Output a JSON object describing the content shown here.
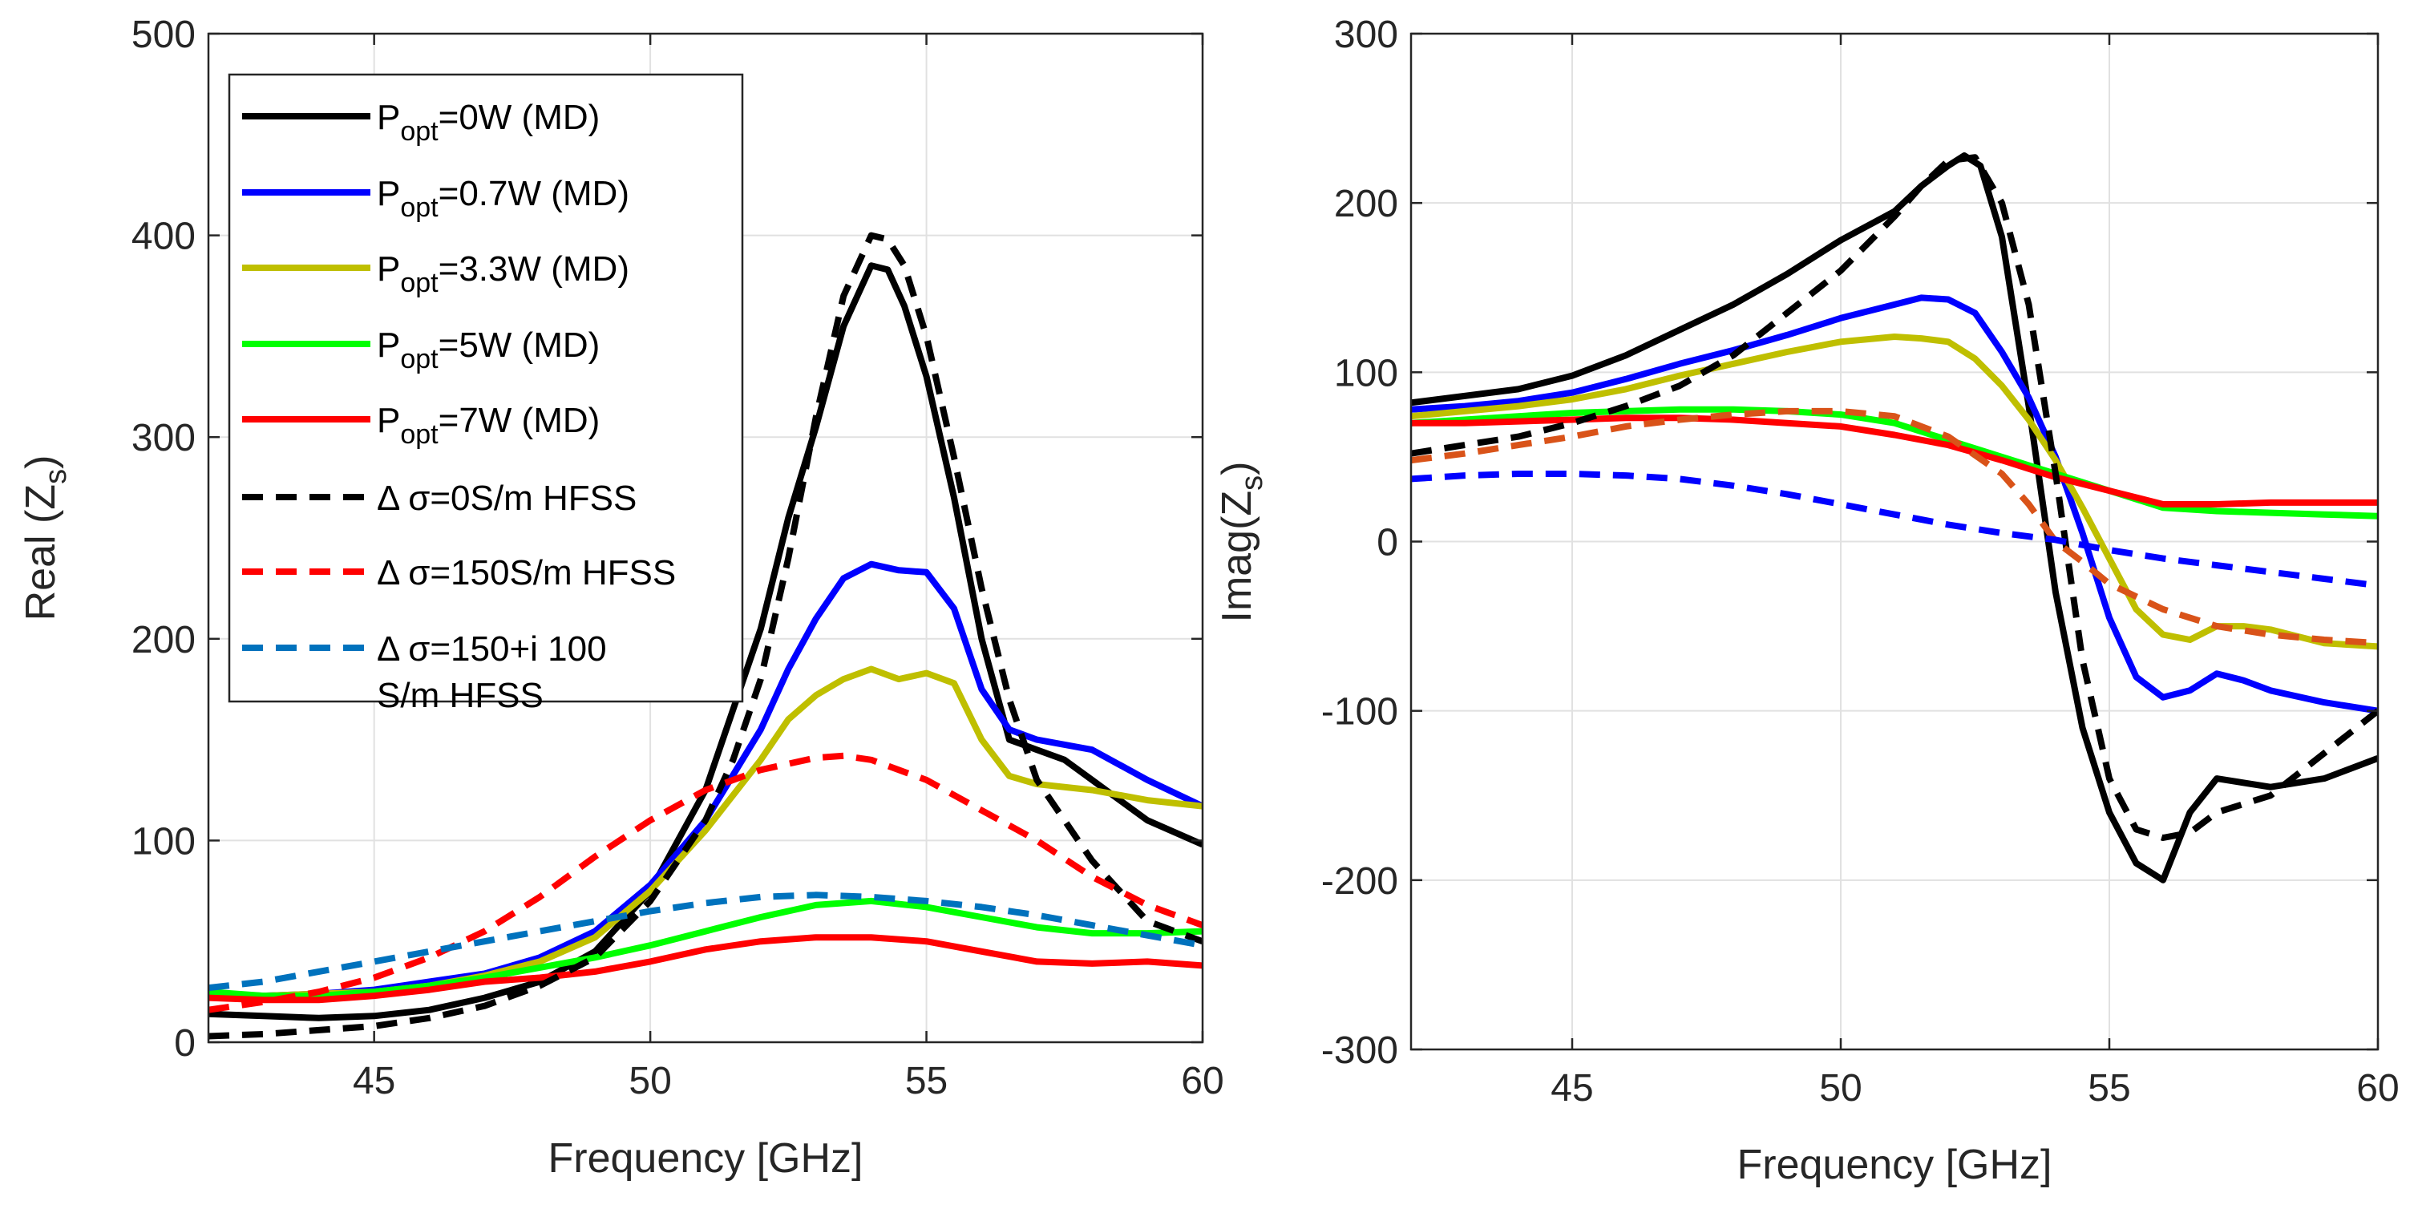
{
  "chart_data": [
    {
      "type": "line",
      "xlabel": "Frequency [GHz]",
      "ylabel": "Real (Z",
      "ylabel_sub": "s",
      "ylabel_close": ")",
      "xlim": [
        42,
        60
      ],
      "ylim": [
        0,
        500
      ],
      "xticks": [
        45,
        50,
        55,
        60
      ],
      "yticks": [
        0,
        100,
        200,
        300,
        400,
        500
      ],
      "grid": true,
      "legend_position": "top-left",
      "legend": [
        {
          "pre": "P",
          "sub": "opt",
          "post": "=0W (MD)",
          "style": "solid",
          "color": "#000000"
        },
        {
          "pre": "P",
          "sub": "opt",
          "post": "=0.7W (MD)",
          "style": "solid",
          "color": "#0000ff"
        },
        {
          "pre": "P",
          "sub": "opt",
          "post": "=3.3W (MD)",
          "style": "solid",
          "color": "#bfbf00"
        },
        {
          "pre": "P",
          "sub": "opt",
          "post": "=5W (MD)",
          "style": "solid",
          "color": "#00ff00"
        },
        {
          "pre": "P",
          "sub": "opt",
          "post": "=7W (MD)",
          "style": "solid",
          "color": "#ff0000"
        },
        {
          "line1": "Δ σ=0S/m HFSS",
          "style": "dashed",
          "color": "#000000"
        },
        {
          "line1": "Δ σ=150S/m HFSS",
          "style": "dashed",
          "color": "#ff0000"
        },
        {
          "line1": "Δ σ=150+i 100",
          "line2": "S/m HFSS",
          "style": "dashed",
          "color": "#0072bd"
        }
      ],
      "series": [
        {
          "name": "Popt=0W (MD)",
          "color": "#000000",
          "style": "solid",
          "x": [
            42,
            43,
            44,
            45,
            46,
            47,
            48,
            49,
            50,
            51,
            52,
            52.5,
            53,
            53.5,
            54,
            54.3,
            54.6,
            55,
            55.5,
            56,
            56.5,
            57,
            57.5,
            58,
            59,
            60
          ],
          "y": [
            14,
            13,
            12,
            13,
            16,
            22,
            30,
            45,
            75,
            125,
            205,
            260,
            305,
            355,
            385,
            383,
            365,
            330,
            270,
            200,
            150,
            145,
            140,
            130,
            110,
            98
          ]
        },
        {
          "name": "Popt=0.7W (MD)",
          "color": "#0000ff",
          "style": "solid",
          "x": [
            42,
            43,
            44,
            45,
            46,
            47,
            48,
            49,
            50,
            51,
            52,
            52.5,
            53,
            53.5,
            54,
            54.5,
            55,
            55.5,
            56,
            56.5,
            57,
            58,
            59,
            60
          ],
          "y": [
            24,
            23,
            24,
            26,
            30,
            34,
            42,
            55,
            78,
            110,
            155,
            185,
            210,
            230,
            237,
            234,
            233,
            215,
            175,
            155,
            150,
            145,
            130,
            117
          ]
        },
        {
          "name": "Popt=3.3W (MD)",
          "color": "#bfbf00",
          "style": "solid",
          "x": [
            42,
            43,
            44,
            45,
            46,
            47,
            48,
            49,
            50,
            51,
            52,
            52.5,
            53,
            53.5,
            54,
            54.5,
            55,
            55.5,
            56,
            56.5,
            57,
            58,
            59,
            60
          ],
          "y": [
            24,
            23,
            24,
            25,
            28,
            33,
            40,
            52,
            75,
            105,
            140,
            160,
            172,
            180,
            185,
            180,
            183,
            178,
            150,
            132,
            128,
            125,
            120,
            117
          ]
        },
        {
          "name": "Popt=5W (MD)",
          "color": "#00ff00",
          "style": "solid",
          "x": [
            42,
            43,
            44,
            45,
            46,
            47,
            48,
            49,
            50,
            51,
            52,
            53,
            54,
            55,
            56,
            57,
            58,
            59,
            60
          ],
          "y": [
            25,
            23,
            23,
            25,
            28,
            32,
            37,
            42,
            48,
            55,
            62,
            68,
            70,
            67,
            62,
            57,
            54,
            54,
            55
          ]
        },
        {
          "name": "Popt=7W (MD)",
          "color": "#ff0000",
          "style": "solid",
          "x": [
            42,
            43,
            44,
            45,
            46,
            47,
            48,
            49,
            50,
            51,
            52,
            53,
            54,
            55,
            56,
            57,
            58,
            59,
            60
          ],
          "y": [
            22,
            21,
            21,
            23,
            26,
            30,
            32,
            35,
            40,
            46,
            50,
            52,
            52,
            50,
            45,
            40,
            39,
            40,
            38
          ]
        },
        {
          "name": "Δ σ=0S/m HFSS",
          "color": "#000000",
          "style": "dashed",
          "x": [
            42,
            43,
            44,
            45,
            46,
            47,
            48,
            49,
            50,
            51,
            51.5,
            52,
            52.5,
            53,
            53.5,
            54,
            54.3,
            54.6,
            55,
            55.5,
            56,
            56.5,
            57,
            58,
            59,
            60
          ],
          "y": [
            3,
            4,
            6,
            8,
            12,
            18,
            28,
            42,
            70,
            110,
            140,
            180,
            240,
            310,
            370,
            400,
            398,
            385,
            350,
            290,
            225,
            170,
            130,
            90,
            60,
            50
          ]
        },
        {
          "name": "Δ σ=150S/m HFSS",
          "color": "#ff0000",
          "style": "dashed",
          "x": [
            42,
            43,
            44,
            45,
            46,
            47,
            48,
            49,
            50,
            51,
            52,
            53,
            53.5,
            54,
            55,
            56,
            57,
            58,
            59,
            60
          ],
          "y": [
            16,
            20,
            25,
            32,
            42,
            55,
            72,
            92,
            110,
            125,
            135,
            141,
            142,
            140,
            130,
            115,
            100,
            82,
            68,
            58
          ]
        },
        {
          "name": "Δ σ=150+i 100 S/m HFSS",
          "color": "#0072bd",
          "style": "dashed",
          "x": [
            42,
            43,
            44,
            45,
            46,
            47,
            48,
            49,
            50,
            51,
            52,
            53,
            54,
            55,
            56,
            57,
            58,
            59,
            60
          ],
          "y": [
            27,
            30,
            35,
            40,
            45,
            50,
            55,
            60,
            65,
            69,
            72,
            73,
            72,
            70,
            67,
            63,
            58,
            53,
            48
          ]
        }
      ]
    },
    {
      "type": "line",
      "xlabel": "Frequency [GHz]",
      "ylabel": "Imag(Z",
      "ylabel_sub": "s",
      "ylabel_close": ")",
      "xlim": [
        42,
        60
      ],
      "ylim": [
        -300,
        300
      ],
      "xticks": [
        45,
        50,
        55,
        60
      ],
      "yticks": [
        -300,
        -200,
        -100,
        0,
        100,
        200,
        300
      ],
      "grid": true,
      "series": [
        {
          "name": "Popt=0W (MD)",
          "color": "#000000",
          "style": "solid",
          "x": [
            42,
            43,
            44,
            45,
            46,
            47,
            48,
            49,
            50,
            51,
            51.5,
            52,
            52.3,
            52.6,
            53,
            53.5,
            54,
            54.5,
            55,
            55.5,
            56,
            56.5,
            57,
            58,
            59,
            60
          ],
          "y": [
            82,
            86,
            90,
            98,
            110,
            125,
            140,
            158,
            178,
            195,
            210,
            222,
            228,
            222,
            180,
            80,
            -30,
            -110,
            -160,
            -190,
            -200,
            -160,
            -140,
            -145,
            -140,
            -128
          ]
        },
        {
          "name": "Popt=0.7W (MD)",
          "color": "#0000ff",
          "style": "solid",
          "x": [
            42,
            43,
            44,
            45,
            46,
            47,
            48,
            49,
            50,
            51,
            51.5,
            52,
            52.5,
            53,
            53.5,
            54,
            54.5,
            55,
            55.5,
            56,
            56.5,
            57,
            57.5,
            58,
            59,
            60
          ],
          "y": [
            78,
            80,
            83,
            88,
            96,
            105,
            113,
            122,
            132,
            140,
            144,
            143,
            135,
            112,
            85,
            50,
            5,
            -45,
            -80,
            -92,
            -88,
            -78,
            -82,
            -88,
            -95,
            -100
          ]
        },
        {
          "name": "Popt=3.3W (MD)",
          "color": "#bfbf00",
          "style": "solid",
          "x": [
            42,
            43,
            44,
            45,
            46,
            47,
            48,
            49,
            50,
            51,
            51.5,
            52,
            52.5,
            53,
            53.5,
            54,
            54.5,
            55,
            55.5,
            56,
            56.5,
            57,
            57.5,
            58,
            59,
            60
          ],
          "y": [
            74,
            77,
            80,
            84,
            90,
            98,
            105,
            112,
            118,
            121,
            120,
            118,
            108,
            92,
            72,
            48,
            20,
            -10,
            -40,
            -55,
            -58,
            -50,
            -50,
            -52,
            -60,
            -62
          ]
        },
        {
          "name": "Popt=5W (MD)",
          "color": "#00ff00",
          "style": "solid",
          "x": [
            42,
            43,
            44,
            45,
            46,
            47,
            48,
            49,
            50,
            51,
            52,
            53,
            54,
            55,
            56,
            57,
            58,
            59,
            60
          ],
          "y": [
            70,
            72,
            74,
            76,
            77,
            78,
            78,
            77,
            75,
            70,
            60,
            50,
            40,
            30,
            20,
            18,
            17,
            16,
            15
          ]
        },
        {
          "name": "Popt=7W (MD)",
          "color": "#ff0000",
          "style": "solid",
          "x": [
            42,
            43,
            44,
            45,
            46,
            47,
            48,
            49,
            50,
            51,
            52,
            53,
            54,
            55,
            56,
            57,
            58,
            59,
            60
          ],
          "y": [
            70,
            70,
            71,
            72,
            73,
            73,
            72,
            70,
            68,
            63,
            57,
            48,
            38,
            30,
            22,
            22,
            23,
            23,
            23
          ]
        },
        {
          "name": "Δ σ=0S/m HFSS",
          "color": "#000000",
          "style": "dashed",
          "x": [
            42,
            43,
            44,
            45,
            46,
            47,
            48,
            49,
            50,
            51,
            51.5,
            52,
            52.5,
            53,
            53.5,
            54,
            54.5,
            55,
            55.5,
            56,
            56.5,
            57,
            58,
            59,
            60
          ],
          "y": [
            52,
            57,
            62,
            70,
            80,
            92,
            110,
            135,
            160,
            192,
            210,
            225,
            227,
            200,
            140,
            40,
            -70,
            -140,
            -170,
            -175,
            -172,
            -160,
            -150,
            -125,
            -100
          ]
        },
        {
          "name": "Δ σ=150S/m HFSS",
          "color": "#d95319",
          "style": "dashed",
          "x": [
            42,
            43,
            44,
            45,
            46,
            47,
            48,
            49,
            50,
            51,
            52,
            53,
            53.5,
            54,
            54.5,
            55,
            56,
            57,
            58,
            59,
            60
          ],
          "y": [
            48,
            52,
            57,
            62,
            68,
            72,
            75,
            77,
            77,
            74,
            62,
            40,
            22,
            0,
            -12,
            -25,
            -40,
            -50,
            -55,
            -58,
            -60
          ]
        },
        {
          "name": "Δ σ=150+i 100 S/m HFSS",
          "color": "#0000ff",
          "style": "dashed",
          "x": [
            42,
            43,
            44,
            45,
            46,
            47,
            48,
            49,
            50,
            51,
            52,
            53,
            54,
            55,
            56,
            57,
            58,
            59,
            60
          ],
          "y": [
            37,
            39,
            40,
            40,
            39,
            37,
            33,
            28,
            22,
            16,
            10,
            5,
            1,
            -5,
            -10,
            -14,
            -18,
            -22,
            -26
          ]
        }
      ]
    }
  ]
}
